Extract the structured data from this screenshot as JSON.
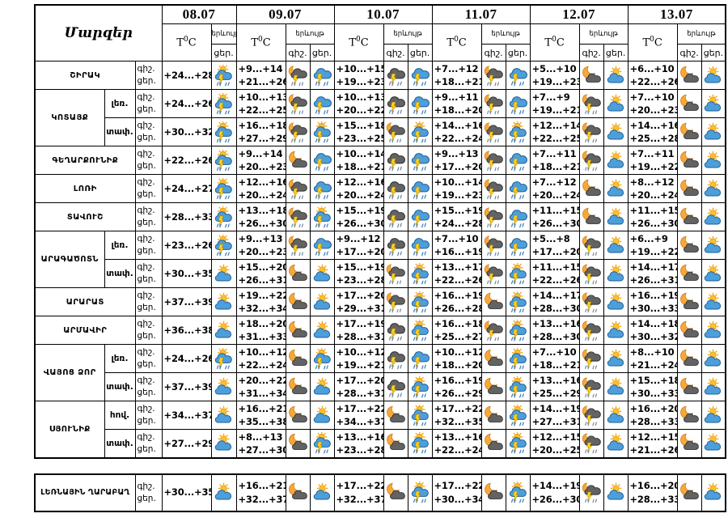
{
  "header": {
    "regions_title": "Մարզեր",
    "temp_t": "T",
    "temp_sup": "0",
    "temp_unit": "C",
    "phenomenon_label": "երևույթ",
    "night_abbr": "գիշ.",
    "day_abbr": "ցեր.",
    "dates": [
      "08.07",
      "09.07",
      "10.07",
      "11.07",
      "12.07",
      "13.07"
    ]
  },
  "icon_legend": {
    "day-storm": "sun-cloud-thunderstorm-icon",
    "day-cloud": "sun-cloud-icon",
    "rain-storm": "rain-cloud-thunderstorm-icon",
    "cloud-storm": "dark-cloud-thunderstorm-icon",
    "night-storm": "moon-cloud-thunderstorm-icon",
    "night-cloud": "moon-cloud-icon"
  },
  "colors": {
    "border": "#000000",
    "sun": "#fdc12a",
    "moon": "#f6a83a",
    "cloud_blue": "#4d9fdb",
    "cloud_dark": "#636363",
    "bolt": "#ffd21e",
    "rain_blue": "#3f7fbe",
    "rain_gray": "#6d87a3"
  },
  "groups": [
    {
      "name": "ՇԻՐԱԿ",
      "rows": [
        {
          "sub": "",
          "days": [
            [
              "",
              "+24...+28",
              "",
              "day-storm"
            ],
            [
              "+9...+14",
              "+21...+26",
              "night-storm",
              "rain-storm"
            ],
            [
              "+10...+15",
              "+19...+23",
              "cloud-storm",
              "rain-storm"
            ],
            [
              "+7...+12",
              "+18...+21",
              "night-storm",
              "rain-storm"
            ],
            [
              "+5...+10",
              "+19...+23",
              "night-cloud",
              "day-cloud"
            ],
            [
              "+6...+10",
              "+22...+26",
              "night-cloud",
              "day-cloud"
            ]
          ]
        }
      ]
    },
    {
      "name": "ԿՈՏԱՅՔ",
      "rows": [
        {
          "sub": "լեռ.",
          "days": [
            [
              "",
              "+24...+26",
              "",
              "day-storm"
            ],
            [
              "+10...+13",
              "+22...+25",
              "night-storm",
              "rain-storm"
            ],
            [
              "+10...+13",
              "+20...+22",
              "cloud-storm",
              "rain-storm"
            ],
            [
              "+9...+11",
              "+18...+20",
              "night-storm",
              "rain-storm"
            ],
            [
              "+7...+9",
              "+19...+21",
              "night-storm",
              "day-cloud"
            ],
            [
              "+7...+10",
              "+20...+23",
              "night-cloud",
              "day-cloud"
            ]
          ]
        },
        {
          "sub": "տափ.",
          "days": [
            [
              "",
              "+30...+32",
              "",
              "day-storm"
            ],
            [
              "+16...+18",
              "+27...+29",
              "night-storm",
              "day-storm"
            ],
            [
              "+15...+18",
              "+23...+25",
              "night-storm",
              "day-storm"
            ],
            [
              "+14...+16",
              "+22...+24",
              "night-storm",
              "day-storm"
            ],
            [
              "+12...+14",
              "+22...+25",
              "night-storm",
              "day-cloud"
            ],
            [
              "+14...+16",
              "+25...+28",
              "night-cloud",
              "day-cloud"
            ]
          ]
        }
      ]
    },
    {
      "name": "ԳԵՂԱՐՔՈՒՆԻՔ",
      "rows": [
        {
          "sub": "",
          "days": [
            [
              "",
              "+22...+26",
              "",
              "day-storm"
            ],
            [
              "+9...+14",
              "+20...+23",
              "night-cloud",
              "rain-storm"
            ],
            [
              "+10...+14",
              "+18...+21",
              "cloud-storm",
              "rain-storm"
            ],
            [
              "+9...+13",
              "+17...+20",
              "night-storm",
              "rain-storm"
            ],
            [
              "+7...+11",
              "+18...+21",
              "night-storm",
              "day-cloud"
            ],
            [
              "+7...+11",
              "+19...+22",
              "night-cloud",
              "day-cloud"
            ]
          ]
        }
      ]
    },
    {
      "name": "ԼՈՌԻ",
      "rows": [
        {
          "sub": "",
          "days": [
            [
              "",
              "+24...+27",
              "",
              "day-storm"
            ],
            [
              "+12...+16",
              "+20...+24",
              "night-storm",
              "rain-storm"
            ],
            [
              "+12...+16",
              "+20...+24",
              "cloud-storm",
              "rain-storm"
            ],
            [
              "+10...+14",
              "+19...+23",
              "night-storm",
              "rain-storm"
            ],
            [
              "+7...+12",
              "+20...+24",
              "night-cloud",
              "day-cloud"
            ],
            [
              "+8...+12",
              "+20...+24",
              "night-cloud",
              "day-cloud"
            ]
          ]
        }
      ]
    },
    {
      "name": "ՏԱՎՈՒՇ",
      "rows": [
        {
          "sub": "",
          "days": [
            [
              "",
              "+28...+33",
              "",
              "day-storm"
            ],
            [
              "+13...+18",
              "+26...+30",
              "night-storm",
              "day-storm"
            ],
            [
              "+15...+19",
              "+26...+30",
              "cloud-storm",
              "rain-storm"
            ],
            [
              "+15...+19",
              "+24...+28",
              "night-storm",
              "rain-storm"
            ],
            [
              "+11...+15",
              "+26...+30",
              "night-cloud",
              "day-cloud"
            ],
            [
              "+11...+15",
              "+26...+30",
              "night-cloud",
              "day-cloud"
            ]
          ]
        }
      ]
    },
    {
      "name": "ԱՐԱԳԱԾՈՏՆ",
      "rows": [
        {
          "sub": "լեռ.",
          "days": [
            [
              "",
              "+23...+26",
              "",
              "day-storm"
            ],
            [
              "+9...+13",
              "+20...+23",
              "night-storm",
              "rain-storm"
            ],
            [
              "+9...+12",
              "+17...+20",
              "cloud-storm",
              "rain-storm"
            ],
            [
              "+7...+10",
              "+16...+19",
              "night-storm",
              "rain-storm"
            ],
            [
              "+5...+8",
              "+17...+20",
              "night-storm",
              "day-cloud"
            ],
            [
              "+6...+9",
              "+19...+22",
              "night-cloud",
              "day-cloud"
            ]
          ]
        },
        {
          "sub": "տափ.",
          "days": [
            [
              "",
              "+30...+35",
              "",
              "day-cloud"
            ],
            [
              "+15...+20",
              "+26...+31",
              "night-cloud",
              "day-cloud"
            ],
            [
              "+15...+19",
              "+23...+28",
              "night-storm",
              "day-storm"
            ],
            [
              "+13...+17",
              "+22...+26",
              "night-storm",
              "day-storm"
            ],
            [
              "+11...+15",
              "+22...+26",
              "night-storm",
              "day-cloud"
            ],
            [
              "+14...+17",
              "+26...+31",
              "night-cloud",
              "day-cloud"
            ]
          ]
        }
      ]
    },
    {
      "name": "ԱՐԱՐԱՏ",
      "rows": [
        {
          "sub": "",
          "days": [
            [
              "",
              "+37...+39",
              "",
              "day-cloud"
            ],
            [
              "+19...+22",
              "+32...+34",
              "night-cloud",
              "day-cloud"
            ],
            [
              "+17...+20",
              "+29...+31",
              "night-storm",
              "day-storm"
            ],
            [
              "+16...+19",
              "+26...+28",
              "night-cloud",
              "day-storm"
            ],
            [
              "+14...+17",
              "+28...+30",
              "night-storm",
              "day-cloud"
            ],
            [
              "+16...+19",
              "+30...+33",
              "night-cloud",
              "day-cloud"
            ]
          ]
        }
      ]
    },
    {
      "name": "ԱՐՄԱՎԻՐ",
      "rows": [
        {
          "sub": "",
          "days": [
            [
              "",
              "+36...+38",
              "",
              "day-cloud"
            ],
            [
              "+18...+20",
              "+31...+33",
              "night-cloud",
              "day-cloud"
            ],
            [
              "+17...+19",
              "+28...+31",
              "cloud-storm",
              "day-storm"
            ],
            [
              "+16...+18",
              "+25...+27",
              "night-storm",
              "day-storm"
            ],
            [
              "+13...+16",
              "+28...+30",
              "night-storm",
              "day-cloud"
            ],
            [
              "+14...+18",
              "+30...+32",
              "night-cloud",
              "day-cloud"
            ]
          ]
        }
      ]
    },
    {
      "name": "ՎԱՅՈՑ ՁՈՐ",
      "rows": [
        {
          "sub": "լեռ.",
          "days": [
            [
              "",
              "+24...+26",
              "",
              "day-storm"
            ],
            [
              "+10...+12",
              "+22...+24",
              "night-cloud",
              "day-storm"
            ],
            [
              "+10...+12",
              "+19...+21",
              "cloud-storm",
              "rain-storm"
            ],
            [
              "+10...+12",
              "+18...+20",
              "night-cloud",
              "day-storm"
            ],
            [
              "+7...+10",
              "+18...+21",
              "night-storm",
              "day-cloud"
            ],
            [
              "+8...+10",
              "+21...+24",
              "night-cloud",
              "day-cloud"
            ]
          ]
        },
        {
          "sub": "տափ.",
          "days": [
            [
              "",
              "+37...+39",
              "",
              "day-cloud"
            ],
            [
              "+20...+22",
              "+31...+34",
              "night-cloud",
              "day-cloud"
            ],
            [
              "+17...+20",
              "+28...+31",
              "cloud-storm",
              "day-storm"
            ],
            [
              "+16...+19",
              "+26...+29",
              "night-cloud",
              "day-storm"
            ],
            [
              "+13...+16",
              "+25...+29",
              "night-storm",
              "day-cloud"
            ],
            [
              "+15...+18",
              "+30...+33",
              "night-cloud",
              "day-cloud"
            ]
          ]
        }
      ]
    },
    {
      "name": "ՍՅՈՒՆԻՔ",
      "rows": [
        {
          "sub": "հով.",
          "days": [
            [
              "",
              "+34...+37",
              "",
              "day-cloud"
            ],
            [
              "+16...+21",
              "+35...+38",
              "night-cloud",
              "day-cloud"
            ],
            [
              "+17...+22",
              "+34...+37",
              "night-cloud",
              "day-storm"
            ],
            [
              "+17...+22",
              "+32...+35",
              "night-cloud",
              "day-storm"
            ],
            [
              "+14...+19",
              "+27...+31",
              "night-storm",
              "day-cloud"
            ],
            [
              "+16...+20",
              "+28...+33",
              "night-cloud",
              "day-cloud"
            ]
          ]
        },
        {
          "sub": "տափ.",
          "days": [
            [
              "",
              "+27...+29",
              "",
              "day-cloud"
            ],
            [
              "+8...+13",
              "+27...+30",
              "night-cloud",
              "day-storm"
            ],
            [
              "+13...+16",
              "+23...+28",
              "night-cloud",
              "day-storm"
            ],
            [
              "+13...+16",
              "+22...+24",
              "night-cloud",
              "day-storm"
            ],
            [
              "+12...+15",
              "+20...+25",
              "night-storm",
              "day-cloud"
            ],
            [
              "+12...+15",
              "+21...+26",
              "night-cloud",
              "day-cloud"
            ]
          ]
        }
      ]
    }
  ],
  "footer": {
    "name": "ԼԵՌՆԱՅԻՆ ՂԱՐԱԲԱՂ",
    "rows": [
      {
        "sub": "",
        "days": [
          [
            "",
            "+30...+35",
            "",
            "day-cloud"
          ],
          [
            "+16...+21",
            "+32...+37",
            "night-cloud",
            "day-cloud"
          ],
          [
            "+17...+22",
            "+32...+37",
            "night-cloud",
            "day-storm"
          ],
          [
            "+17...+22",
            "+30...+34",
            "night-cloud",
            "day-storm"
          ],
          [
            "+14...+19",
            "+26...+30",
            "night-storm",
            "day-cloud"
          ],
          [
            "+16...+20",
            "+28...+33",
            "night-cloud",
            "day-cloud"
          ]
        ]
      }
    ]
  }
}
